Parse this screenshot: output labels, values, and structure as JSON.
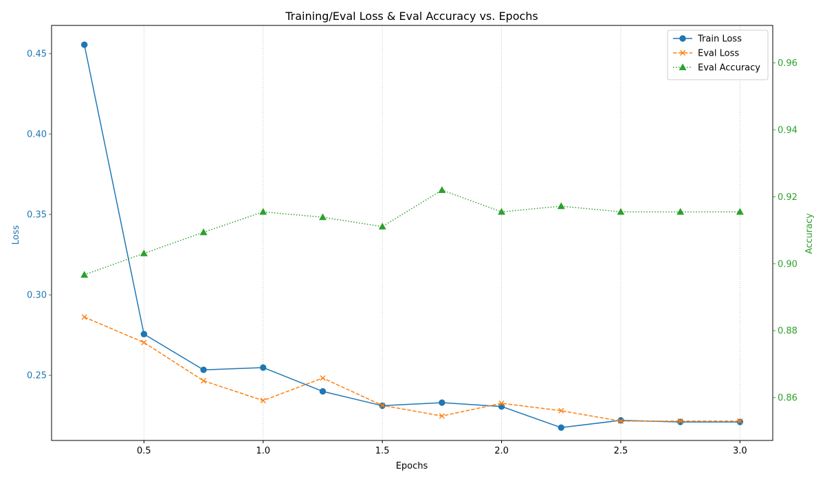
{
  "chart_data": {
    "type": "line",
    "title": "Training/Eval Loss & Eval Accuracy vs. Epochs",
    "xlabel": "Epochs",
    "ylabel_left": "Loss",
    "ylabel_right": "Accuracy",
    "x": [
      0.25,
      0.5,
      0.75,
      1.0,
      1.25,
      1.5,
      1.75,
      2.0,
      2.25,
      2.5,
      2.75,
      3.0
    ],
    "xlim": [
      0.1125,
      3.1375
    ],
    "xticks": [
      0.5,
      1.0,
      1.5,
      2.0,
      2.5,
      3.0
    ],
    "xtick_labels": [
      "0.5",
      "1.0",
      "1.5",
      "2.0",
      "2.5",
      "3.0"
    ],
    "ylim_left": [
      0.2095,
      0.4675
    ],
    "yticks_left": [
      0.25,
      0.3,
      0.35,
      0.4,
      0.45
    ],
    "ytick_labels_left": [
      "0.25",
      "0.30",
      "0.35",
      "0.40",
      "0.45"
    ],
    "ylim_right": [
      0.8472,
      0.9712
    ],
    "yticks_right": [
      0.86,
      0.88,
      0.9,
      0.92,
      0.94,
      0.96
    ],
    "ytick_labels_right": [
      "0.86",
      "0.88",
      "0.90",
      "0.92",
      "0.94",
      "0.96"
    ],
    "grid": "vertical-dotted",
    "legend_position": "top-right",
    "series": [
      {
        "name": "Train Loss",
        "axis": "left",
        "color": "#1f77b4",
        "linestyle": "solid",
        "marker": "circle",
        "values": [
          0.4555,
          0.2756,
          0.2534,
          0.2548,
          0.24,
          0.2311,
          0.233,
          0.2306,
          0.2175,
          0.222,
          0.221,
          0.221
        ]
      },
      {
        "name": "Eval Loss",
        "axis": "left",
        "color": "#ff7f0e",
        "linestyle": "dashed",
        "marker": "x",
        "values": [
          0.2862,
          0.2704,
          0.2466,
          0.2343,
          0.2483,
          0.2313,
          0.2247,
          0.2326,
          0.228,
          0.2215,
          0.2215,
          0.2215
        ]
      },
      {
        "name": "Eval Accuracy",
        "axis": "right",
        "color": "#2ca02c",
        "linestyle": "dotted",
        "marker": "triangle",
        "values": [
          0.8967,
          0.9031,
          0.9094,
          0.9155,
          0.9139,
          0.9111,
          0.922,
          0.9155,
          0.9172,
          0.9155,
          0.9155,
          0.9155
        ]
      }
    ]
  }
}
